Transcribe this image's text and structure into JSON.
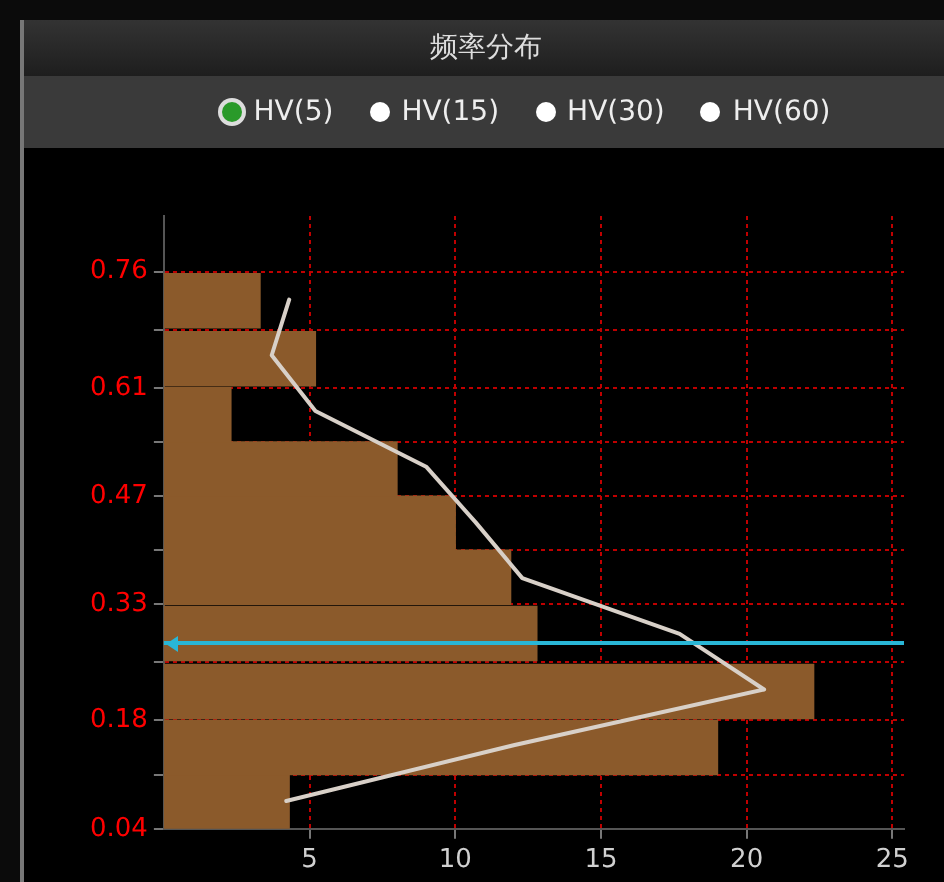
{
  "chart_data": {
    "type": "histogram",
    "title": "频率分布",
    "orientation": "horizontal",
    "annotations": [
      "HV(5)",
      "HV(15)",
      "HV(30)",
      "HV(60)"
    ],
    "series": [
      {
        "color": "#8b5a2b",
        "bins": [
          0.04,
          0.11,
          0.18,
          0.255,
          0.33,
          0.4,
          0.47,
          0.54,
          0.61,
          0.685,
          0.76
        ],
        "values": [
          4.3,
          19,
          22.3,
          12.8,
          11.9,
          10,
          8,
          2.3,
          5.2,
          3.3
        ]
      },
      {
        "type": "line",
        "color": "#d8d0c8",
        "x": [
          0.076,
          0.148,
          0.22,
          0.292,
          0.364,
          0.436,
          0.508,
          0.58,
          0.652,
          0.724
        ],
        "values": [
          4.2,
          12,
          20.6,
          17.7,
          12.3,
          10.7,
          9,
          5.2,
          3.7,
          4.3
        ]
      }
    ],
    "xlim": [
      0,
      25.4
    ],
    "xticks": [
      5,
      10,
      15,
      20,
      25
    ],
    "ylim": [
      0.04,
      0.832
    ],
    "yticks": [
      0.04,
      {
        "value": 0.11,
        "label": null
      },
      0.18,
      {
        "value": 0.255,
        "label": null
      },
      0.33,
      {
        "value": 0.4,
        "label": null
      },
      0.47,
      {
        "value": 0.54,
        "label": null
      },
      0.61,
      {
        "value": 0.685,
        "label": null
      },
      0.76
    ],
    "ref_lines": [
      {
        "axis": "y",
        "value": 0.28,
        "color": "#29b6d6"
      }
    ],
    "grid": true,
    "legend": false,
    "marker": "none",
    "line_style": "solid"
  }
}
